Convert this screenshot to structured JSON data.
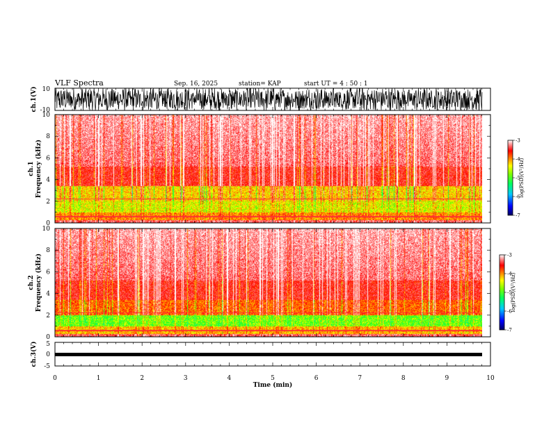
{
  "header": {
    "title": "VLF Spectra",
    "date": "Sep. 16, 2025",
    "station": "station= KAP",
    "start": "start  UT =   4 : 50 : 1"
  },
  "chart_data": [
    {
      "id": "ch1-waveform",
      "type": "line",
      "ylabel": "ch.1(V)",
      "ylim": [
        -10,
        10
      ],
      "yticks": [
        "10",
        "-10"
      ],
      "xlim": [
        0,
        10
      ],
      "description_of_signal": "dense oscillating waveform between about -10 and 10 V over 0 to 9.8 min"
    },
    {
      "id": "ch1-spectrogram",
      "type": "heatmap",
      "ylabel": "ch.1\nFrequency (kHz)",
      "ylabel_lines": [
        "ch.1",
        "Frequency (kHz)"
      ],
      "ylim": [
        0,
        10
      ],
      "yticks": [
        "0",
        "2",
        "4",
        "6",
        "8",
        "10"
      ],
      "xlim": [
        0,
        10
      ],
      "colorbar": {
        "label": "log(PSD)(V²/Hz)",
        "range": [
          -7,
          -3
        ],
        "ticks": [
          "-3",
          "-4",
          "-5",
          "-6",
          "-7"
        ]
      }
    },
    {
      "id": "ch2-spectrogram",
      "type": "heatmap",
      "ylabel_lines": [
        "ch.2",
        "Frequency (kHz)"
      ],
      "ylim": [
        0,
        10
      ],
      "yticks": [
        "0",
        "2",
        "4",
        "6",
        "8",
        "10"
      ],
      "xlim": [
        0,
        10
      ],
      "colorbar": {
        "label": "log(PSD)(V²/Hz)",
        "range": [
          -7,
          -3
        ],
        "ticks": [
          "-3",
          "-4",
          "-5",
          "-6",
          "-7"
        ]
      }
    },
    {
      "id": "ch3-waveform",
      "type": "line",
      "ylabel": "ch.3(V)",
      "ylim": [
        -5,
        5
      ],
      "yticks": [
        "5",
        "0",
        "-5"
      ],
      "xlim": [
        0,
        10
      ],
      "xlabel": "Time  (min)",
      "xticks": [
        "0",
        "1",
        "2",
        "3",
        "4",
        "5",
        "6",
        "7",
        "8",
        "9",
        "10"
      ]
    }
  ],
  "colors": {
    "colormap": [
      "#000080",
      "#0000ff",
      "#00c0ff",
      "#00ff80",
      "#40ff00",
      "#ffff00",
      "#ff8000",
      "#ff0000",
      "#ff8080",
      "#ffffff"
    ]
  }
}
